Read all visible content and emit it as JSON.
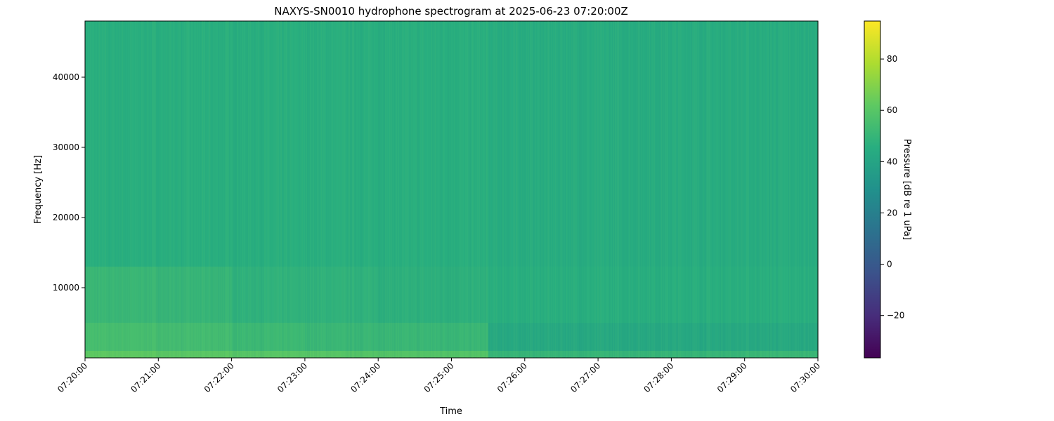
{
  "chart_data": {
    "type": "heatmap",
    "title": "NAXYS-SN0010 hydrophone spectrogram at 2025-06-23 07:20:00Z",
    "xlabel": "Time",
    "ylabel": "Frequency [Hz]",
    "colorbar_label": "Pressure [dB re 1 uPa]",
    "colormap": "viridis",
    "clim": [
      -36.5,
      94.8
    ],
    "colorbar_ticks": [
      -20,
      0,
      20,
      40,
      60,
      80
    ],
    "colorbar_tick_labels": [
      "−20",
      "0",
      "20",
      "40",
      "60",
      "80"
    ],
    "xlim": [
      "07:20:00",
      "07:30:00"
    ],
    "x_ticks": [
      "07:20:00",
      "07:21:00",
      "07:22:00",
      "07:23:00",
      "07:24:00",
      "07:25:00",
      "07:26:00",
      "07:27:00",
      "07:28:00",
      "07:29:00",
      "07:30:00"
    ],
    "ylim": [
      0,
      48000
    ],
    "y_ticks": [
      10000,
      20000,
      30000,
      40000
    ],
    "y_tick_labels": [
      "10000",
      "20000",
      "30000",
      "40000"
    ],
    "time_bins": [
      "07:20:00",
      "07:20:30",
      "07:21:00",
      "07:21:30",
      "07:22:00",
      "07:22:30",
      "07:23:00",
      "07:23:30",
      "07:24:00",
      "07:24:30",
      "07:25:00",
      "07:25:30",
      "07:26:00",
      "07:26:30",
      "07:27:00",
      "07:27:30",
      "07:28:00",
      "07:28:30",
      "07:29:00",
      "07:29:30",
      "07:30:00"
    ],
    "frequency_bands_hz": [
      [
        0,
        1000
      ],
      [
        1000,
        5000
      ],
      [
        5000,
        13000
      ],
      [
        13000,
        48000
      ]
    ],
    "values_db": [
      [
        62,
        62,
        61,
        61,
        60,
        60,
        60,
        59,
        59,
        59,
        59,
        50,
        50,
        50,
        50,
        50,
        50,
        50,
        51,
        51
      ],
      [
        55,
        55,
        54,
        54,
        52,
        52,
        51,
        51,
        51,
        51,
        51,
        43,
        43,
        43,
        43,
        43,
        43,
        43,
        43,
        43
      ],
      [
        51,
        51,
        50,
        50,
        48,
        48,
        48,
        48,
        47,
        47,
        47,
        46,
        46,
        46,
        46,
        46,
        46,
        46,
        46,
        46
      ],
      [
        46,
        46,
        46,
        46,
        46,
        46,
        46,
        46,
        46,
        46,
        46,
        45,
        45,
        45,
        45,
        45,
        45,
        45,
        45,
        45
      ]
    ],
    "grid": false
  }
}
